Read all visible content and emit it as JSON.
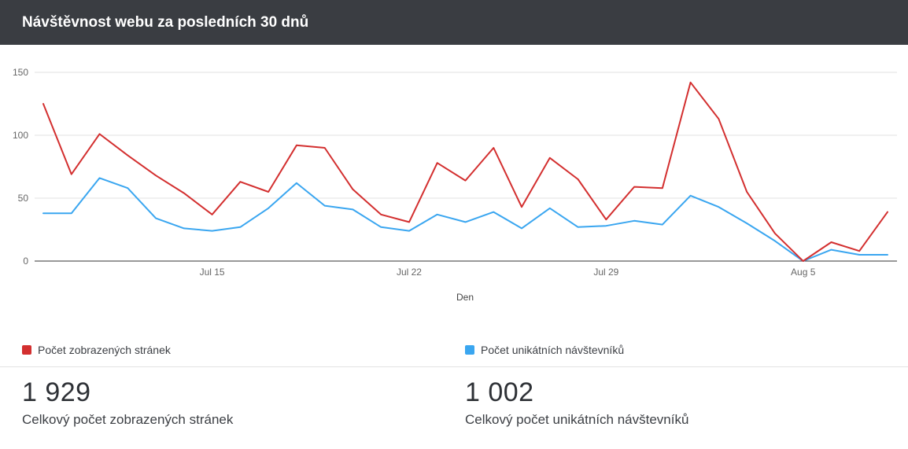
{
  "header": {
    "title": "Návštěvnost webu za posledních 30 dnů"
  },
  "chart_data": {
    "type": "line",
    "x": [
      "Jul 9",
      "Jul 10",
      "Jul 11",
      "Jul 12",
      "Jul 13",
      "Jul 14",
      "Jul 15",
      "Jul 16",
      "Jul 17",
      "Jul 18",
      "Jul 19",
      "Jul 20",
      "Jul 21",
      "Jul 22",
      "Jul 23",
      "Jul 24",
      "Jul 25",
      "Jul 26",
      "Jul 27",
      "Jul 28",
      "Jul 29",
      "Jul 30",
      "Jul 31",
      "Aug 1",
      "Aug 2",
      "Aug 3",
      "Aug 4",
      "Aug 5",
      "Aug 6",
      "Aug 7",
      "Aug 8"
    ],
    "series": [
      {
        "name": "Počet zobrazených stránek",
        "color": "#d32f2f",
        "values": [
          125,
          69,
          101,
          84,
          68,
          54,
          37,
          63,
          55,
          92,
          90,
          57,
          37,
          31,
          78,
          64,
          90,
          43,
          82,
          65,
          33,
          59,
          58,
          142,
          113,
          55,
          22,
          0,
          15,
          8,
          39
        ]
      },
      {
        "name": "Počet unikátních návštevníků",
        "color": "#3aa6f0",
        "values": [
          38,
          38,
          66,
          58,
          34,
          26,
          24,
          27,
          42,
          62,
          44,
          41,
          27,
          24,
          37,
          31,
          39,
          26,
          42,
          27,
          28,
          32,
          29,
          52,
          43,
          30,
          16,
          0,
          9,
          5,
          5
        ]
      }
    ],
    "xlabel": "Den",
    "ylabel": "",
    "ylim": [
      0,
      150
    ],
    "yticks": [
      0,
      50,
      100,
      150
    ],
    "xticks": [
      "Jul 15",
      "Jul 22",
      "Jul 29",
      "Aug 5"
    ],
    "grid": true,
    "legend": "bottom"
  },
  "stats": [
    {
      "value": "1 929",
      "label": "Celkový počet zobrazených stránek"
    },
    {
      "value": "1 002",
      "label": "Celkový počet unikátních návštevníků"
    }
  ]
}
